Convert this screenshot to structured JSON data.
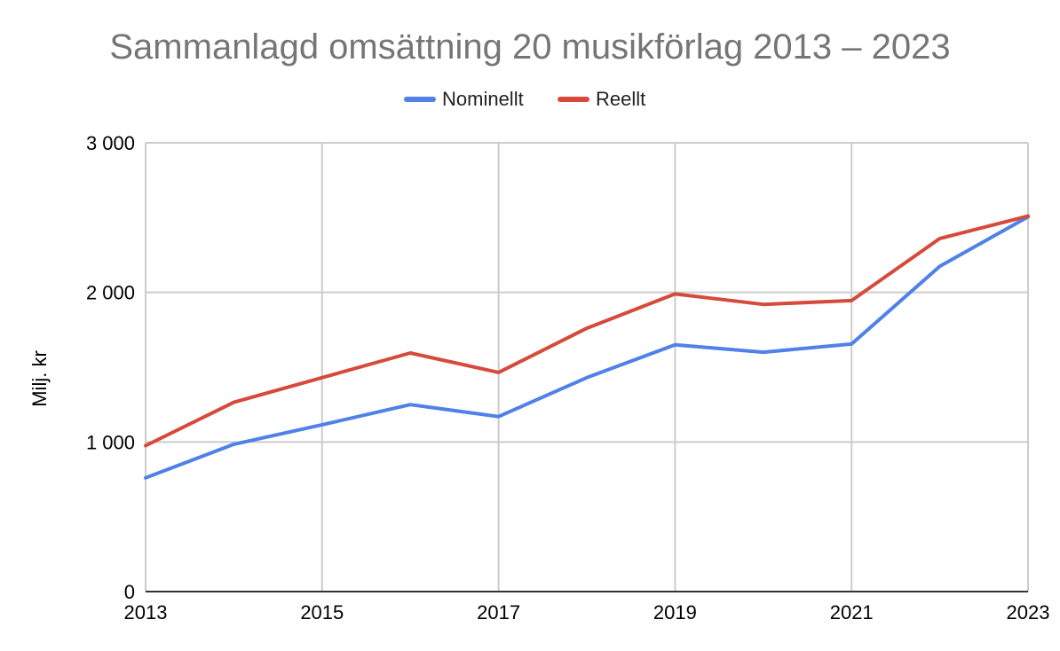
{
  "chart_data": {
    "type": "line",
    "title": "Sammanlagd omsättning 20 musikförlag 2013 – 2023",
    "xlabel": "",
    "ylabel": "Milj. kr",
    "x": [
      2013,
      2014,
      2015,
      2016,
      2017,
      2018,
      2019,
      2020,
      2021,
      2022,
      2023
    ],
    "x_ticks": [
      "2013",
      "2015",
      "2017",
      "2019",
      "2021",
      "2023"
    ],
    "xlim": [
      2013,
      2023
    ],
    "ylim": [
      0,
      3000
    ],
    "y_ticks": [
      0,
      1000,
      2000,
      3000
    ],
    "y_tick_labels": [
      "0",
      "1 000",
      "2 000",
      "3 000"
    ],
    "grid": true,
    "legend_position": "top-center",
    "series": [
      {
        "name": "Nominellt",
        "color": "#4f81e9",
        "values": [
          760,
          985,
          1115,
          1250,
          1170,
          1430,
          1650,
          1600,
          1655,
          2175,
          2505
        ]
      },
      {
        "name": "Reellt",
        "color": "#d64a3b",
        "values": [
          975,
          1265,
          1430,
          1595,
          1465,
          1760,
          1990,
          1920,
          1945,
          2360,
          2510
        ]
      }
    ]
  }
}
